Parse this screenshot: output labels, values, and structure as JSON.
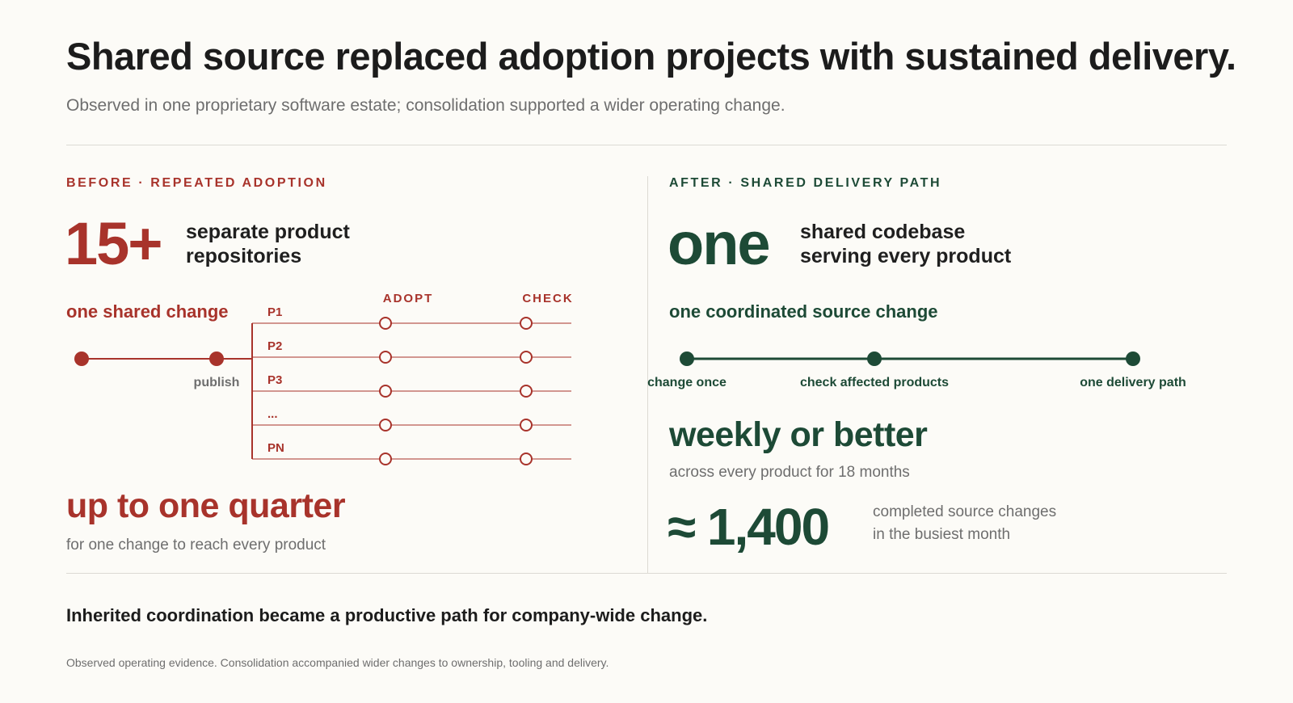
{
  "header": {
    "title": "Shared source replaced adoption projects with sustained delivery.",
    "subtitle": "Observed in one proprietary software estate; consolidation supported a wider operating change."
  },
  "before": {
    "kicker": "BEFORE · REPEATED ADOPTION",
    "big_number": "15+",
    "big_desc_line1": "separate product",
    "big_desc_line2": "repositories",
    "flow_title": "one shared change",
    "publish_label": "publish",
    "column_adopt": "ADOPT",
    "column_check": "CHECK",
    "products": [
      "P1",
      "P2",
      "P3",
      "...",
      "PN"
    ],
    "headline": "up to one quarter",
    "headline_note": "for one change to reach every product",
    "color": "#a8332b"
  },
  "after": {
    "kicker": "AFTER · SHARED DELIVERY PATH",
    "big_number": "one",
    "big_desc_line1": "shared codebase",
    "big_desc_line2": "serving every product",
    "flow_title": "one coordinated source change",
    "steps": [
      "change once",
      "check affected products",
      "one delivery path"
    ],
    "headline": "weekly or better",
    "headline_note": "across every product for 18 months",
    "metric": "≈ 1,400",
    "metric_note_line1": "completed source changes",
    "metric_note_line2": "in the busiest month",
    "color": "#1d4a36"
  },
  "footer": {
    "conclusion": "Inherited coordination became a productive path for company-wide change.",
    "footnote": "Observed operating evidence. Consolidation accompanied wider changes to ownership, tooling and delivery."
  }
}
